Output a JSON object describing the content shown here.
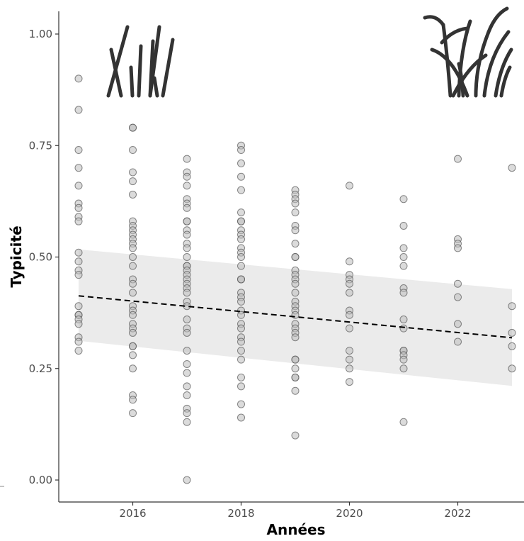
{
  "chart_data": {
    "type": "scatter",
    "xlabel": "Années",
    "ylabel": "Typicité",
    "xlim": [
      2014.65,
      2023.25
    ],
    "ylim": [
      -0.05,
      1.05
    ],
    "x_ticks": [
      2016,
      2018,
      2020,
      2022
    ],
    "x_tick_labels": [
      "2016",
      "2018",
      "2020",
      "2022"
    ],
    "y_ticks": [
      0,
      0.25,
      0.5,
      0.75,
      1.0
    ],
    "y_tick_labels": [
      "0.00",
      "0.25",
      "0.50",
      "0.75",
      "1.00"
    ],
    "grid": false,
    "points": [
      {
        "year": 2015,
        "values": [
          0.9,
          0.83,
          0.74,
          0.7,
          0.66,
          0.62,
          0.61,
          0.59,
          0.58,
          0.51,
          0.49,
          0.47,
          0.46,
          0.39,
          0.37,
          0.37,
          0.36,
          0.35,
          0.32,
          0.31,
          0.29
        ]
      },
      {
        "year": 2016,
        "values": [
          0.79,
          0.79,
          0.74,
          0.69,
          0.67,
          0.64,
          0.58,
          0.57,
          0.56,
          0.55,
          0.54,
          0.53,
          0.52,
          0.5,
          0.48,
          0.45,
          0.44,
          0.42,
          0.39,
          0.38,
          0.37,
          0.35,
          0.34,
          0.33,
          0.3,
          0.3,
          0.28,
          0.25,
          0.19,
          0.18,
          0.15
        ]
      },
      {
        "year": 2017,
        "values": [
          0.72,
          0.69,
          0.68,
          0.66,
          0.63,
          0.62,
          0.61,
          0.58,
          0.58,
          0.56,
          0.55,
          0.53,
          0.52,
          0.5,
          0.48,
          0.48,
          0.47,
          0.46,
          0.45,
          0.44,
          0.43,
          0.42,
          0.4,
          0.39,
          0.36,
          0.34,
          0.33,
          0.29,
          0.26,
          0.24,
          0.21,
          0.19,
          0.16,
          0.15,
          0.13,
          0.0
        ]
      },
      {
        "year": 2018,
        "values": [
          0.75,
          0.74,
          0.71,
          0.68,
          0.65,
          0.6,
          0.58,
          0.58,
          0.56,
          0.55,
          0.54,
          0.52,
          0.51,
          0.5,
          0.48,
          0.45,
          0.45,
          0.42,
          0.41,
          0.4,
          0.38,
          0.37,
          0.35,
          0.34,
          0.32,
          0.31,
          0.29,
          0.27,
          0.23,
          0.21,
          0.17,
          0.14
        ]
      },
      {
        "year": 2019,
        "values": [
          0.65,
          0.64,
          0.63,
          0.62,
          0.6,
          0.57,
          0.56,
          0.53,
          0.5,
          0.5,
          0.47,
          0.46,
          0.45,
          0.44,
          0.42,
          0.4,
          0.39,
          0.38,
          0.37,
          0.35,
          0.34,
          0.33,
          0.32,
          0.27,
          0.27,
          0.25,
          0.23,
          0.23,
          0.2,
          0.1
        ]
      },
      {
        "year": 2020,
        "values": [
          0.66,
          0.49,
          0.46,
          0.45,
          0.44,
          0.42,
          0.38,
          0.37,
          0.34,
          0.29,
          0.27,
          0.25,
          0.22
        ]
      },
      {
        "year": 2021,
        "values": [
          0.63,
          0.57,
          0.52,
          0.5,
          0.48,
          0.43,
          0.42,
          0.36,
          0.34,
          0.29,
          0.29,
          0.28,
          0.27,
          0.25,
          0.13
        ]
      },
      {
        "year": 2022,
        "values": [
          0.72,
          0.54,
          0.53,
          0.52,
          0.44,
          0.41,
          0.35,
          0.31
        ]
      },
      {
        "year": 2023,
        "values": [
          0.7,
          0.39,
          0.33,
          0.3,
          0.25
        ]
      }
    ],
    "trend": {
      "x": [
        2015,
        2023
      ],
      "y": [
        0.413,
        0.319
      ],
      "style": "dashed",
      "color": "#000000"
    },
    "confidence_band": {
      "x": [
        2015,
        2023
      ],
      "upper": [
        0.517,
        0.428
      ],
      "lower": [
        0.312,
        0.211
      ],
      "color": "#ebebeb"
    },
    "colors": {
      "point_fill": "#bdbdbd",
      "point_stroke": "#555555",
      "axis": "#333333",
      "band": "#ebebeb"
    }
  },
  "decorations": {
    "left_icon": "sparse-reed-grass-icon",
    "right_icon": "dense-reed-grass-icon"
  }
}
